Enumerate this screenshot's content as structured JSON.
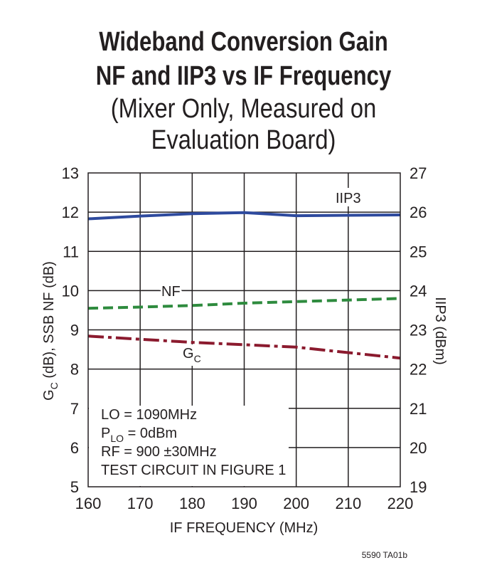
{
  "title": {
    "line1": "Wideband Conversion Gain",
    "line2": "NF and IIP3 vs IF Frequency",
    "line3": "(Mixer Only, Measured on",
    "line4": "Evaluation Board)"
  },
  "chart_data": {
    "type": "line",
    "title": "Wideband Conversion Gain NF and IIP3 vs IF Frequency (Mixer Only, Measured on Evaluation Board)",
    "xlabel": "IF FREQUENCY (MHz)",
    "ylabel_left": "GC (dB), SSB NF (dB)",
    "ylabel_left_main": "G",
    "ylabel_left_sub": "C",
    "ylabel_left_rest": " (dB), SSB NF (dB)",
    "ylabel_right": "IIP3 (dBm)",
    "xlim": [
      160,
      220
    ],
    "ylim_left": [
      5,
      13
    ],
    "ylim_right": [
      19,
      27
    ],
    "x_ticks": [
      "160",
      "170",
      "180",
      "190",
      "200",
      "210",
      "220"
    ],
    "y_ticks_left": [
      "5",
      "6",
      "7",
      "8",
      "9",
      "10",
      "11",
      "12",
      "13"
    ],
    "y_ticks_right": [
      "19",
      "20",
      "21",
      "22",
      "23",
      "24",
      "25",
      "26",
      "27"
    ],
    "grid": true,
    "series": [
      {
        "name": "IIP3",
        "axis": "right",
        "color": "#2e4a9e",
        "style": "solid",
        "x": [
          160,
          170,
          180,
          190,
          200,
          210,
          220
        ],
        "y": [
          25.83,
          25.9,
          25.96,
          25.99,
          25.91,
          25.92,
          25.93
        ]
      },
      {
        "name": "NF",
        "axis": "left",
        "color": "#2e8b3e",
        "style": "dashed",
        "x": [
          160,
          170,
          180,
          190,
          200,
          210,
          220
        ],
        "y": [
          9.55,
          9.58,
          9.62,
          9.68,
          9.72,
          9.76,
          9.8
        ]
      },
      {
        "name": "GC",
        "label_main": "G",
        "label_sub": "C",
        "axis": "left",
        "color": "#8b1a2e",
        "style": "dashdot",
        "x": [
          160,
          170,
          180,
          190,
          200,
          210,
          220
        ],
        "y": [
          8.84,
          8.76,
          8.68,
          8.62,
          8.56,
          8.42,
          8.28
        ]
      }
    ],
    "conditions": {
      "line1": "LO = 1090MHz",
      "line2_main": "P",
      "line2_sub": "LO",
      "line2_rest": " = 0dBm",
      "line3": "RF = 900 ±30MHz",
      "line4": "TEST CIRCUIT IN FIGURE 1"
    },
    "footnote": "5590 TA01b"
  },
  "colors": {
    "grid": "#231f20",
    "text": "#231f20"
  }
}
